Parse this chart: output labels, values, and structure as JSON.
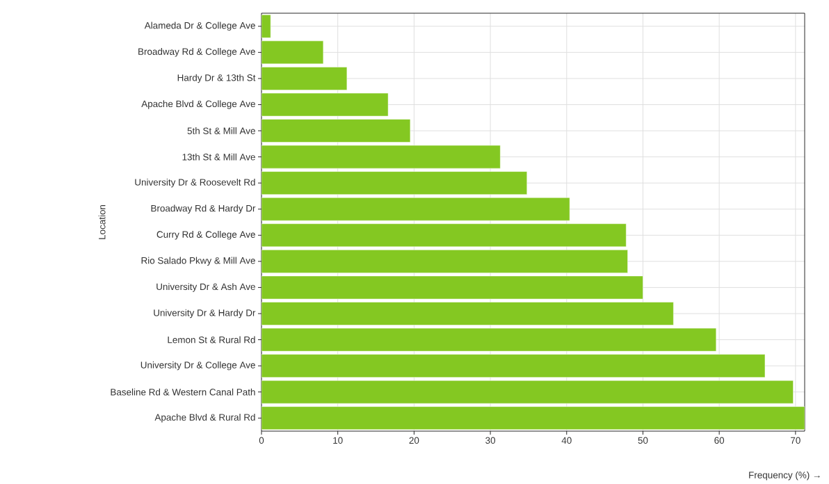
{
  "chart_data": {
    "type": "bar",
    "orientation": "horizontal",
    "xlabel": "Frequency (%) →",
    "ylabel": "Location",
    "categories": [
      "Alameda Dr & College Ave",
      "Broadway Rd & College Ave",
      "Hardy Dr & 13th St",
      "Apache Blvd & College Ave",
      "5th St & Mill Ave",
      "13th St & Mill Ave",
      "University Dr & Roosevelt Rd",
      "Broadway Rd & Hardy Dr",
      "Curry Rd & College Ave",
      "Rio Salado Pkwy & Mill Ave",
      "University Dr & Ash Ave",
      "University Dr & Hardy Dr",
      "Lemon St & Rural Rd",
      "University Dr & College Ave",
      "Baseline Rd & Western Canal Path",
      "Apache Blvd & Rural Rd"
    ],
    "values": [
      1.2,
      8.1,
      11.2,
      16.6,
      19.5,
      31.3,
      34.8,
      40.4,
      47.8,
      48.0,
      50.0,
      54.0,
      59.6,
      66.0,
      69.7,
      71.2
    ],
    "color": "#84c822",
    "xlim": [
      0,
      71.2
    ],
    "xticks": [
      0,
      10,
      20,
      30,
      40,
      50,
      60,
      70
    ],
    "grid": true
  }
}
